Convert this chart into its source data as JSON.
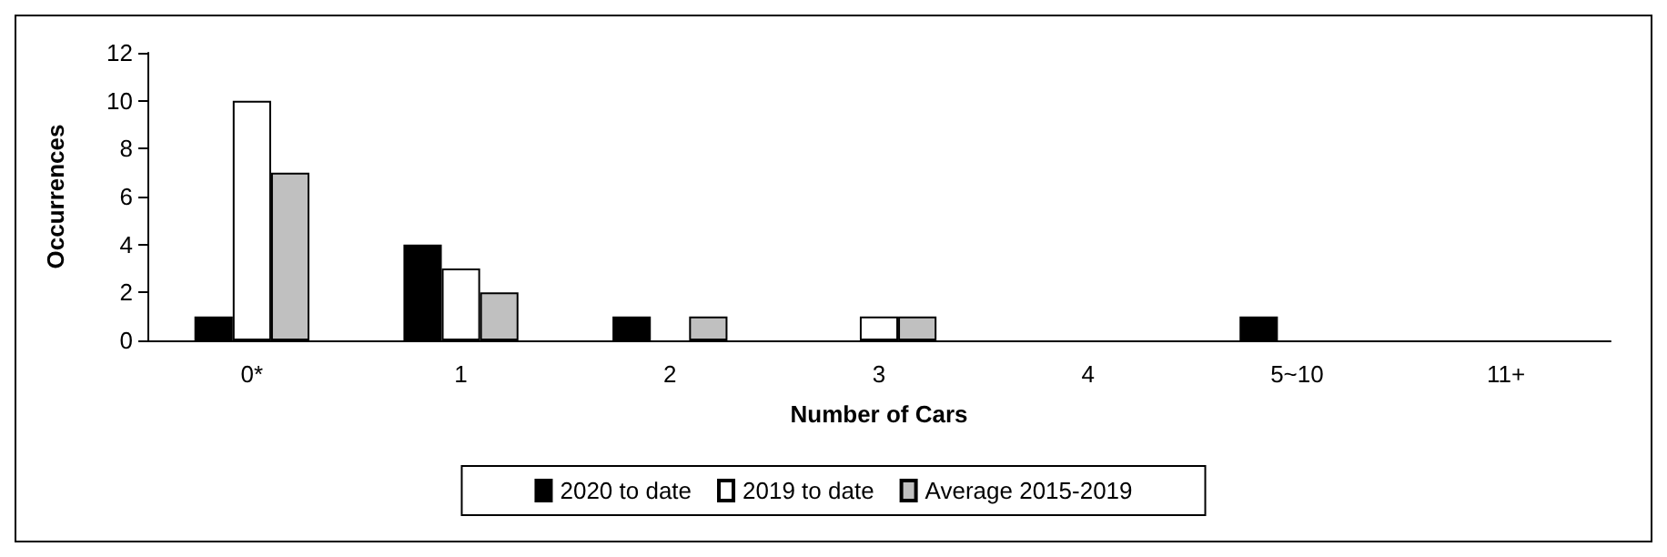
{
  "chart_data": {
    "type": "bar",
    "xlabel": "Number of Cars",
    "ylabel": "Occurrences",
    "categories": [
      "0*",
      "1",
      "2",
      "3",
      "4",
      "5~10",
      "11+"
    ],
    "series": [
      {
        "name": "2020 to date",
        "color": "#000000",
        "values": [
          1,
          4,
          1,
          0,
          0,
          1,
          0
        ]
      },
      {
        "name": "2019 to date",
        "color": "#ffffff",
        "values": [
          10,
          3,
          0,
          1,
          0,
          0,
          0
        ]
      },
      {
        "name": "Average 2015-2019",
        "color": "#c0c0c0",
        "values": [
          7,
          2,
          1,
          1,
          0,
          0,
          0
        ]
      }
    ],
    "ylim": [
      0,
      12
    ],
    "yticks": [
      0,
      2,
      4,
      6,
      8,
      10,
      12
    ],
    "grid": false,
    "legend": "bottom"
  }
}
